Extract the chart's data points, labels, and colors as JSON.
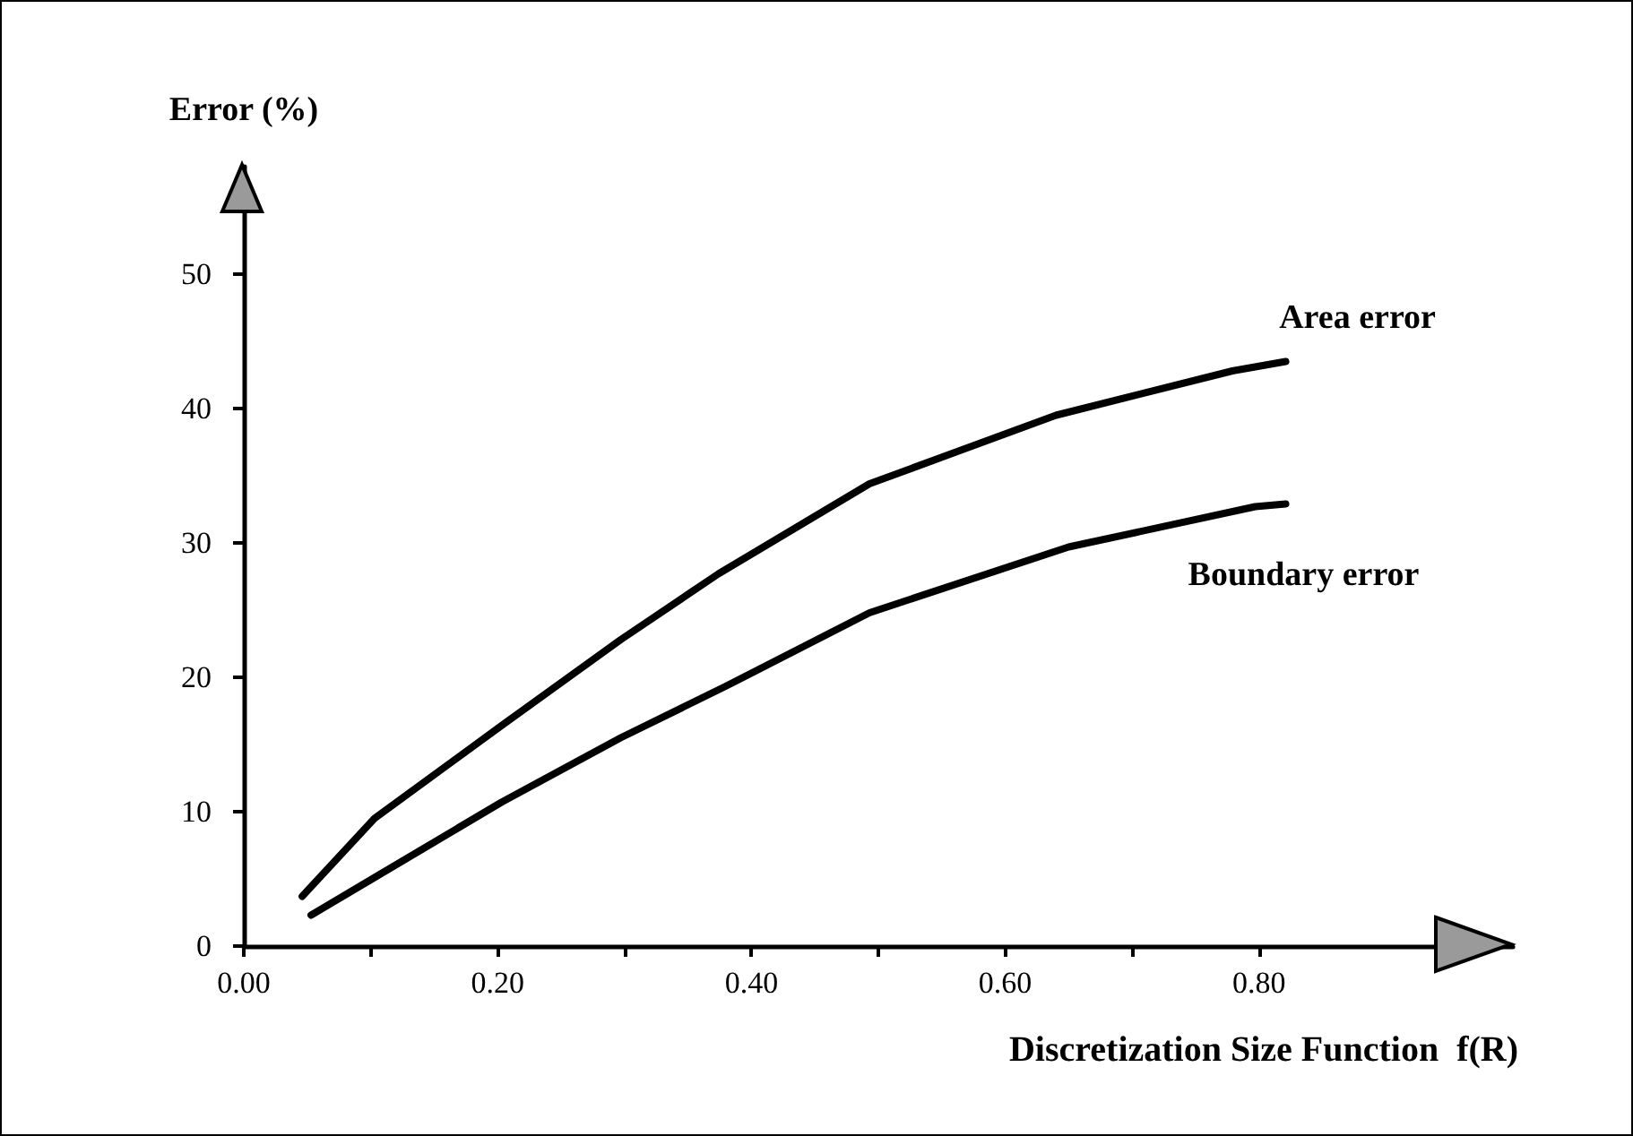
{
  "chart_data": {
    "type": "line",
    "xlabel": "Discretization Size Function  f(R)",
    "ylabel": "Error (%)",
    "xlim": [
      0,
      1.0
    ],
    "ylim": [
      0,
      58
    ],
    "xticks": [
      {
        "value": 0,
        "label": "0.00"
      },
      {
        "value": 0.1,
        "label": null
      },
      {
        "value": 0.2,
        "label": "0.20"
      },
      {
        "value": 0.3,
        "label": null
      },
      {
        "value": 0.4,
        "label": "0.40"
      },
      {
        "value": 0.5,
        "label": null
      },
      {
        "value": 0.6,
        "label": "0.60"
      },
      {
        "value": 0.7,
        "label": null
      },
      {
        "value": 0.8,
        "label": "0.80"
      }
    ],
    "yticks": [
      0,
      10,
      20,
      30,
      40,
      50
    ],
    "grid": false,
    "legend": false,
    "marker": "none",
    "line_style": "solid",
    "series": [
      {
        "name": "Area error",
        "color": "#000000",
        "x": [
          0.046,
          0.103,
          0.203,
          0.297,
          0.374,
          0.493,
          0.64,
          0.779,
          0.821
        ],
        "values": [
          3.7,
          9.5,
          16.4,
          22.8,
          27.7,
          34.4,
          39.5,
          42.8,
          43.5
        ]
      },
      {
        "name": "Boundary error",
        "color": "#000000",
        "x": [
          0.053,
          0.103,
          0.203,
          0.297,
          0.379,
          0.493,
          0.65,
          0.797,
          0.821
        ],
        "values": [
          2.3,
          5.1,
          10.7,
          15.5,
          19.3,
          24.8,
          29.7,
          32.7,
          32.9
        ]
      }
    ]
  }
}
